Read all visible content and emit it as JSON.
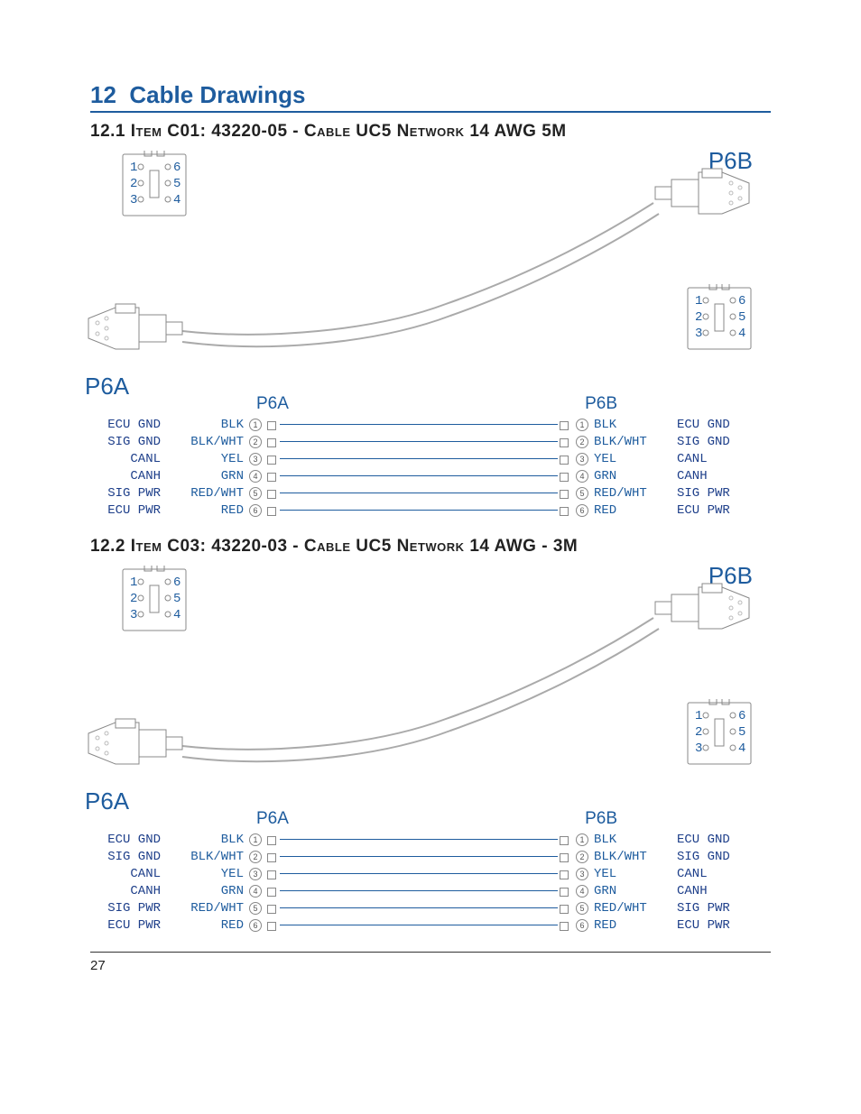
{
  "page_number": "27",
  "section": {
    "number": "12",
    "title": "Cable Drawings"
  },
  "items": [
    {
      "key": "item1",
      "heading": "12.1  Item C01: 43220-05 - Cable UC5 Network 14 AWG 5M",
      "left_conn": "P6A",
      "right_conn": "P6B",
      "face_pins": [
        [
          "1",
          "6"
        ],
        [
          "2",
          "5"
        ],
        [
          "3",
          "4"
        ]
      ],
      "pins": [
        {
          "signal": "ECU GND",
          "color": "BLK",
          "num": "1"
        },
        {
          "signal": "SIG GND",
          "color": "BLK/WHT",
          "num": "2"
        },
        {
          "signal": "CANL",
          "color": "YEL",
          "num": "3"
        },
        {
          "signal": "CANH",
          "color": "GRN",
          "num": "4"
        },
        {
          "signal": "SIG PWR",
          "color": "RED/WHT",
          "num": "5"
        },
        {
          "signal": "ECU PWR",
          "color": "RED",
          "num": "6"
        }
      ]
    },
    {
      "key": "item2",
      "heading": "12.2  Item C03: 43220-03 - Cable UC5 Network 14 AWG - 3M",
      "left_conn": "P6A",
      "right_conn": "P6B",
      "face_pins": [
        [
          "1",
          "6"
        ],
        [
          "2",
          "5"
        ],
        [
          "3",
          "4"
        ]
      ],
      "pins": [
        {
          "signal": "ECU GND",
          "color": "BLK",
          "num": "1"
        },
        {
          "signal": "SIG GND",
          "color": "BLK/WHT",
          "num": "2"
        },
        {
          "signal": "CANL",
          "color": "YEL",
          "num": "3"
        },
        {
          "signal": "CANH",
          "color": "GRN",
          "num": "4"
        },
        {
          "signal": "SIG PWR",
          "color": "RED/WHT",
          "num": "5"
        },
        {
          "signal": "ECU PWR",
          "color": "RED",
          "num": "6"
        }
      ]
    }
  ],
  "colors": {
    "brand": "#1e5c9e",
    "signal": "#1e3f8a",
    "light": "#888888"
  }
}
